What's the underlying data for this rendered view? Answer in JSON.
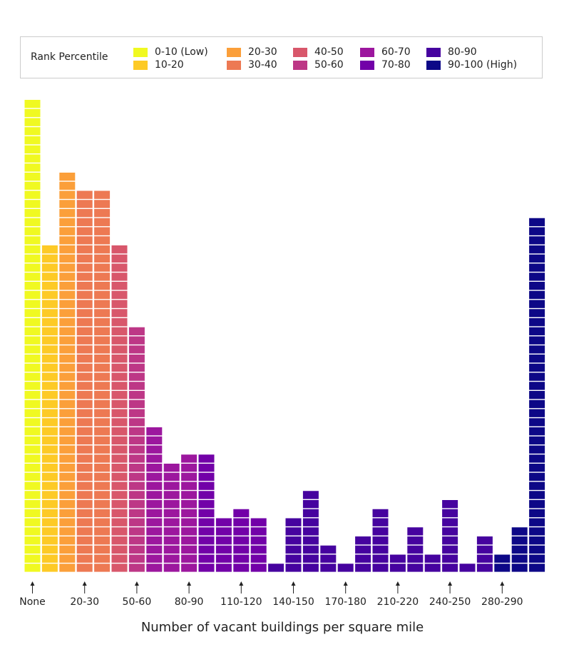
{
  "legend": {
    "title": "Rank Percentile",
    "entries": [
      {
        "label": "0-10 (Low)",
        "color": "#f0f921"
      },
      {
        "label": "10-20",
        "color": "#fdca26"
      },
      {
        "label": "20-30",
        "color": "#fb9f3a"
      },
      {
        "label": "30-40",
        "color": "#ed7953"
      },
      {
        "label": "40-50",
        "color": "#d8576b"
      },
      {
        "label": "50-60",
        "color": "#bd3786"
      },
      {
        "label": "60-70",
        "color": "#9c179e"
      },
      {
        "label": "70-80",
        "color": "#7201a8"
      },
      {
        "label": "80-90",
        "color": "#46039f"
      },
      {
        "label": "90-100 (High)",
        "color": "#0d0887"
      }
    ]
  },
  "chart_data": {
    "type": "bar",
    "xlabel": "Number of vacant buildings per square mile",
    "ylabel": "",
    "tick_labels": [
      "None",
      "20-30",
      "50-60",
      "80-90",
      "110-120",
      "140-150",
      "170-180",
      "210-220",
      "240-250",
      "280-290"
    ],
    "tick_bin_index": [
      0,
      3,
      6,
      9,
      12,
      15,
      18,
      21,
      24,
      27
    ],
    "bars": [
      {
        "count": 52,
        "percentile": "0-10 (Low)"
      },
      {
        "count": 36,
        "percentile": "10-20"
      },
      {
        "count": 44,
        "percentile": "20-30"
      },
      {
        "count": 42,
        "percentile": "30-40"
      },
      {
        "count": 42,
        "percentile": "30-40"
      },
      {
        "count": 36,
        "percentile": "40-50"
      },
      {
        "count": 27,
        "percentile": "50-60"
      },
      {
        "count": 16,
        "percentile": "60-70"
      },
      {
        "count": 12,
        "percentile": "60-70"
      },
      {
        "count": 13,
        "percentile": "60-70"
      },
      {
        "count": 13,
        "percentile": "70-80"
      },
      {
        "count": 6,
        "percentile": "70-80"
      },
      {
        "count": 7,
        "percentile": "70-80"
      },
      {
        "count": 6,
        "percentile": "70-80"
      },
      {
        "count": 1,
        "percentile": "80-90"
      },
      {
        "count": 6,
        "percentile": "80-90"
      },
      {
        "count": 9,
        "percentile": "80-90"
      },
      {
        "count": 3,
        "percentile": "80-90"
      },
      {
        "count": 1,
        "percentile": "80-90"
      },
      {
        "count": 4,
        "percentile": "80-90"
      },
      {
        "count": 7,
        "percentile": "80-90"
      },
      {
        "count": 2,
        "percentile": "80-90"
      },
      {
        "count": 5,
        "percentile": "80-90"
      },
      {
        "count": 2,
        "percentile": "80-90"
      },
      {
        "count": 8,
        "percentile": "80-90"
      },
      {
        "count": 1,
        "percentile": "80-90"
      },
      {
        "count": 4,
        "percentile": "80-90"
      },
      {
        "count": 2,
        "percentile": "90-100 (High)"
      },
      {
        "count": 5,
        "percentile": "90-100 (High)"
      },
      {
        "count": 39,
        "percentile": "90-100 (High)"
      }
    ]
  }
}
